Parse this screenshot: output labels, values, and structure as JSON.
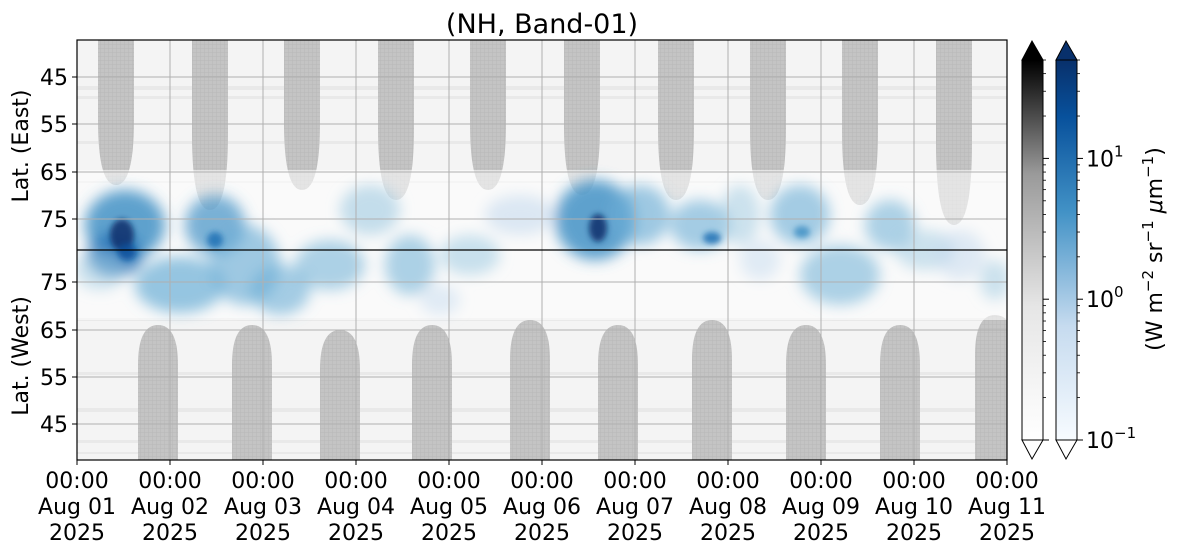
{
  "chart_data": {
    "type": "heatmap",
    "title": "(NH, Band-01)",
    "ylabel_top": "Lat. (East)",
    "ylabel_bottom": "Lat. (West)",
    "y_ticks_top": [
      "45",
      "55",
      "65",
      "75"
    ],
    "y_ticks_bottom": [
      "75",
      "65",
      "55",
      "45"
    ],
    "x_ticks": [
      {
        "time": "00:00",
        "date": "Aug 01",
        "year": "2025"
      },
      {
        "time": "00:00",
        "date": "Aug 02",
        "year": "2025"
      },
      {
        "time": "00:00",
        "date": "Aug 03",
        "year": "2025"
      },
      {
        "time": "00:00",
        "date": "Aug 04",
        "year": "2025"
      },
      {
        "time": "00:00",
        "date": "Aug 05",
        "year": "2025"
      },
      {
        "time": "00:00",
        "date": "Aug 06",
        "year": "2025"
      },
      {
        "time": "00:00",
        "date": "Aug 07",
        "year": "2025"
      },
      {
        "time": "00:00",
        "date": "Aug 08",
        "year": "2025"
      },
      {
        "time": "00:00",
        "date": "Aug 09",
        "year": "2025"
      },
      {
        "time": "00:00",
        "date": "Aug 10",
        "year": "2025"
      },
      {
        "time": "00:00",
        "date": "Aug 11",
        "year": "2025"
      }
    ],
    "xlim": [
      "2025-08-01 00:00",
      "2025-08-11 00:00"
    ],
    "colorbar": {
      "label": "(W m$^{-2}$ sr$^{-1}$ $\\mu$m$^{-1}$)",
      "scale": "log",
      "range": [
        0.1,
        50
      ],
      "tick_labels": [
        "10",
        "10",
        "10"
      ],
      "tick_exponents": [
        "1",
        "0",
        "−1"
      ],
      "tick_values": [
        10,
        1,
        0.1
      ],
      "colormaps": [
        "Greys",
        "Blues"
      ],
      "extend": "both"
    },
    "grid": true,
    "layout": "two stacked latitude panels (East above, West below) sharing the time axis"
  },
  "colors": {
    "blue_dark": "#08306b",
    "blue_mid": "#4292c6",
    "blue_light": "#c6dbef",
    "grey_dark": "#bdbdbd",
    "grey_light": "#f0f0f0",
    "grid": "#b0b0b0"
  }
}
